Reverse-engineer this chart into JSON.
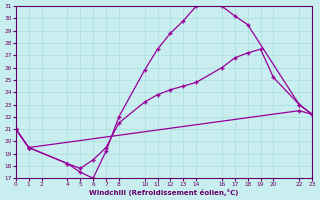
{
  "xlabel": "Windchill (Refroidissement éolien,°C)",
  "bg_color": "#c8eef0",
  "line_color": "#990099",
  "grid_color": "#aadddd",
  "axis_color": "#660066",
  "xlim": [
    0,
    23
  ],
  "ylim": [
    17,
    31
  ],
  "xticks": [
    0,
    1,
    2,
    4,
    5,
    6,
    7,
    8,
    10,
    11,
    12,
    13,
    14,
    16,
    17,
    18,
    19,
    20,
    22,
    23
  ],
  "yticks": [
    17,
    18,
    19,
    20,
    21,
    22,
    23,
    24,
    25,
    26,
    27,
    28,
    29,
    30,
    31
  ],
  "line1_x": [
    0,
    1,
    4,
    5,
    6,
    7,
    8,
    10,
    11,
    12,
    13,
    14,
    16,
    17,
    18,
    22,
    23
  ],
  "line1_y": [
    21,
    19.5,
    18.2,
    17.5,
    17.0,
    19.2,
    22.0,
    25.8,
    27.5,
    28.8,
    29.8,
    31.0,
    31.0,
    30.2,
    29.5,
    23.0,
    22.2
  ],
  "line2_x": [
    0,
    1,
    4,
    5,
    6,
    7,
    8,
    10,
    11,
    12,
    13,
    14,
    16,
    17,
    18,
    19,
    20,
    22,
    23
  ],
  "line2_y": [
    21,
    19.5,
    18.2,
    17.8,
    18.5,
    19.5,
    21.5,
    23.2,
    23.8,
    24.2,
    24.5,
    24.8,
    26.0,
    26.8,
    27.2,
    27.5,
    25.2,
    23.0,
    22.2
  ],
  "line3_x": [
    0,
    1,
    22,
    23
  ],
  "line3_y": [
    21,
    19.5,
    22.5,
    22.2
  ]
}
